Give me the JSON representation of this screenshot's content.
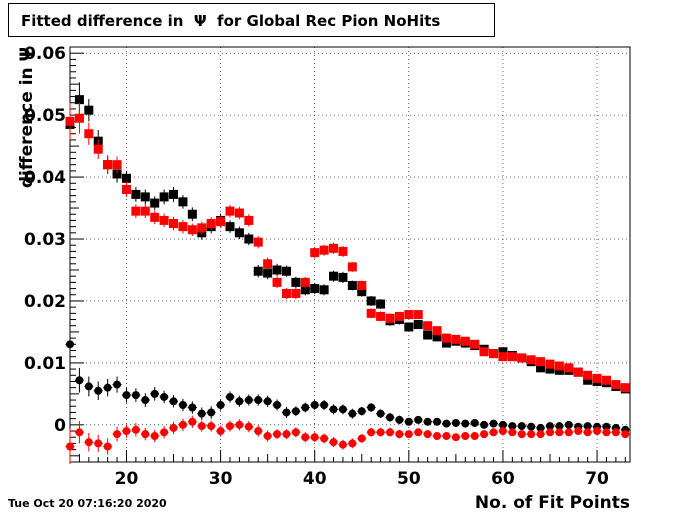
{
  "chart_data": {
    "type": "scatter",
    "title": "Fitted difference in  Ψ  for Global Rec Pion NoHits",
    "xlabel": "No. of Fit Points",
    "ylabel": "difference in Ψ",
    "xlim": [
      14,
      73.5
    ],
    "ylim": [
      -0.006,
      0.061
    ],
    "x_ticks": [
      20,
      30,
      40,
      50,
      60,
      70
    ],
    "x_tick_labels": [
      "20",
      "30",
      "40",
      "50",
      "60",
      "70"
    ],
    "y_ticks": [
      0,
      0.01,
      0.02,
      0.03,
      0.04,
      0.05,
      0.06
    ],
    "y_tick_labels": [
      "0",
      "0.01",
      "0.02",
      "0.03",
      "0.04",
      "0.05",
      "0.06"
    ],
    "grid": true,
    "series": [
      {
        "color": "#000000",
        "marker": "square",
        "x": [
          14,
          15,
          16,
          17,
          18,
          19,
          20,
          21,
          22,
          23,
          24,
          25,
          26,
          27,
          28,
          29,
          30,
          31,
          32,
          33,
          34,
          35,
          36,
          37,
          38,
          39,
          40,
          41,
          42,
          43,
          44,
          45,
          46,
          47,
          48,
          49,
          50,
          51,
          52,
          53,
          54,
          55,
          56,
          57,
          58,
          59,
          60,
          61,
          62,
          63,
          64,
          65,
          66,
          67,
          68,
          69,
          70,
          71,
          72,
          73
        ],
        "y": [
          0.0485,
          0.0525,
          0.0508,
          0.0458,
          0.042,
          0.0405,
          0.0398,
          0.0372,
          0.0368,
          0.0358,
          0.0368,
          0.0372,
          0.036,
          0.034,
          0.031,
          0.032,
          0.033,
          0.032,
          0.031,
          0.03,
          0.0248,
          0.0245,
          0.025,
          0.0248,
          0.023,
          0.0218,
          0.022,
          0.0218,
          0.024,
          0.0238,
          0.0225,
          0.0215,
          0.02,
          0.0195,
          0.0168,
          0.017,
          0.0158,
          0.0162,
          0.0145,
          0.0142,
          0.0132,
          0.0135,
          0.0132,
          0.0128,
          0.0122,
          0.0115,
          0.0118,
          0.0112,
          0.0108,
          0.0102,
          0.0092,
          0.009,
          0.0088,
          0.0088,
          0.0085,
          0.0072,
          0.007,
          0.0068,
          0.0062,
          0.0058
        ],
        "yerr": [
          0.0035,
          0.0028,
          0.0018,
          0.0018,
          0.0015,
          0.0014,
          0.0012,
          0.0012,
          0.0012,
          0.0011,
          0.0012,
          0.0012,
          0.0011,
          0.0011,
          0.0011,
          0.0011,
          0.0011,
          0.001,
          0.001,
          0.001,
          0.001,
          0.001,
          0.001,
          0.0009,
          0.0009,
          0.0009,
          0.0009,
          0.0009,
          0.0009,
          0.0009,
          0.0008,
          0.0008,
          0.0008,
          0.0008,
          0.0008,
          0.0008,
          0.0007,
          0.0007,
          0.0007,
          0.0007,
          0.0007,
          0.0007,
          0.0006,
          0.0006,
          0.0006,
          0.0006,
          0.0006,
          0.0006,
          0.0006,
          0.0006,
          0.0005,
          0.0005,
          0.0005,
          0.0005,
          0.0005,
          0.0005,
          0.0005,
          0.0005,
          0.0005,
          0.0005
        ]
      },
      {
        "color": "#ff0000",
        "marker": "square",
        "x": [
          14,
          15,
          16,
          17,
          18,
          19,
          20,
          21,
          22,
          23,
          24,
          25,
          26,
          27,
          28,
          29,
          30,
          31,
          32,
          33,
          34,
          35,
          36,
          37,
          38,
          39,
          40,
          41,
          42,
          43,
          44,
          45,
          46,
          47,
          48,
          49,
          50,
          51,
          52,
          53,
          54,
          55,
          56,
          57,
          58,
          59,
          60,
          61,
          62,
          63,
          64,
          65,
          66,
          67,
          68,
          69,
          70,
          71,
          72,
          73
        ],
        "y": [
          0.049,
          0.0495,
          0.047,
          0.0445,
          0.042,
          0.042,
          0.038,
          0.0345,
          0.0345,
          0.0335,
          0.033,
          0.0325,
          0.032,
          0.0315,
          0.0318,
          0.0325,
          0.0328,
          0.0345,
          0.0342,
          0.033,
          0.0295,
          0.026,
          0.023,
          0.0212,
          0.0212,
          0.023,
          0.0278,
          0.0282,
          0.0285,
          0.028,
          0.0255,
          0.0225,
          0.018,
          0.0175,
          0.0172,
          0.0175,
          0.0178,
          0.0178,
          0.016,
          0.0152,
          0.014,
          0.0138,
          0.0135,
          0.013,
          0.0118,
          0.0115,
          0.011,
          0.011,
          0.0108,
          0.0105,
          0.0102,
          0.0098,
          0.0095,
          0.0092,
          0.0085,
          0.008,
          0.0075,
          0.0072,
          0.0065,
          0.006
        ],
        "yerr": [
          0.003,
          0.0025,
          0.0018,
          0.0016,
          0.0015,
          0.0013,
          0.0012,
          0.0011,
          0.0011,
          0.0011,
          0.0011,
          0.0011,
          0.0011,
          0.001,
          0.001,
          0.001,
          0.001,
          0.001,
          0.001,
          0.001,
          0.001,
          0.001,
          0.0009,
          0.0009,
          0.0009,
          0.0009,
          0.0009,
          0.0009,
          0.0009,
          0.0009,
          0.0008,
          0.0008,
          0.0008,
          0.0008,
          0.0008,
          0.0007,
          0.0007,
          0.0007,
          0.0007,
          0.0007,
          0.0007,
          0.0006,
          0.0006,
          0.0006,
          0.0006,
          0.0006,
          0.0006,
          0.0006,
          0.0005,
          0.0005,
          0.0005,
          0.0005,
          0.0005,
          0.0005,
          0.0005,
          0.0005,
          0.0005,
          0.0005,
          0.0005,
          0.0005
        ]
      },
      {
        "color": "#000000",
        "marker": "circle",
        "x": [
          14,
          15,
          16,
          17,
          18,
          19,
          20,
          21,
          22,
          23,
          24,
          25,
          26,
          27,
          28,
          29,
          30,
          31,
          32,
          33,
          34,
          35,
          36,
          37,
          38,
          39,
          40,
          41,
          42,
          43,
          44,
          45,
          46,
          47,
          48,
          49,
          50,
          51,
          52,
          53,
          54,
          55,
          56,
          57,
          58,
          59,
          60,
          61,
          62,
          63,
          64,
          65,
          66,
          67,
          68,
          69,
          70,
          71,
          72,
          73
        ],
        "y": [
          0.013,
          0.0072,
          0.0062,
          0.0055,
          0.006,
          0.0065,
          0.0048,
          0.0048,
          0.004,
          0.005,
          0.0045,
          0.0038,
          0.0032,
          0.0028,
          0.0018,
          0.002,
          0.0032,
          0.0045,
          0.0038,
          0.004,
          0.004,
          0.0038,
          0.0032,
          0.002,
          0.0022,
          0.0028,
          0.0032,
          0.0032,
          0.0025,
          0.0025,
          0.0018,
          0.0022,
          0.0028,
          0.0018,
          0.0012,
          0.0008,
          0.0005,
          0.0008,
          0.0005,
          0.0005,
          0.0002,
          0.0003,
          0.0002,
          0.0003,
          0.0,
          0.0002,
          0.0,
          -0.0002,
          -0.0002,
          -0.0003,
          -0.0005,
          -0.0002,
          -0.0002,
          0.0,
          -0.0003,
          -0.0002,
          -0.0003,
          -0.0003,
          -0.0005,
          -0.0008
        ],
        "yerr": [
          0.0035,
          0.002,
          0.0016,
          0.0015,
          0.0014,
          0.0013,
          0.0012,
          0.0011,
          0.0011,
          0.0011,
          0.001,
          0.001,
          0.001,
          0.001,
          0.001,
          0.001,
          0.0009,
          0.0009,
          0.0009,
          0.0009,
          0.0009,
          0.0009,
          0.0009,
          0.0009,
          0.0008,
          0.0008,
          0.0008,
          0.0008,
          0.0008,
          0.0008,
          0.0008,
          0.0007,
          0.0007,
          0.0007,
          0.0007,
          0.0007,
          0.0006,
          0.0006,
          0.0006,
          0.0006,
          0.0006,
          0.0006,
          0.0006,
          0.0005,
          0.0005,
          0.0005,
          0.0005,
          0.0005,
          0.0005,
          0.0005,
          0.0005,
          0.0005,
          0.0005,
          0.0005,
          0.0005,
          0.0005,
          0.0005,
          0.0005,
          0.0005,
          0.0005
        ]
      },
      {
        "color": "#ff0000",
        "marker": "circle",
        "x": [
          14,
          15,
          16,
          17,
          18,
          19,
          20,
          21,
          22,
          23,
          24,
          25,
          26,
          27,
          28,
          29,
          30,
          31,
          32,
          33,
          34,
          35,
          36,
          37,
          38,
          39,
          40,
          41,
          42,
          43,
          44,
          45,
          46,
          47,
          48,
          49,
          50,
          51,
          52,
          53,
          54,
          55,
          56,
          57,
          58,
          59,
          60,
          61,
          62,
          63,
          64,
          65,
          66,
          67,
          68,
          69,
          70,
          71,
          72,
          73
        ],
        "y": [
          -0.0035,
          -0.0012,
          -0.0028,
          -0.003,
          -0.0035,
          -0.0015,
          -0.001,
          -0.0008,
          -0.0015,
          -0.0018,
          -0.0012,
          -0.0005,
          0.0,
          0.0005,
          -0.0002,
          -0.0002,
          -0.001,
          -0.0002,
          0.0,
          -0.0003,
          -0.001,
          -0.0018,
          -0.0015,
          -0.0015,
          -0.0012,
          -0.002,
          -0.002,
          -0.0022,
          -0.0028,
          -0.0032,
          -0.003,
          -0.0022,
          -0.0012,
          -0.0012,
          -0.0012,
          -0.0015,
          -0.0015,
          -0.0012,
          -0.0015,
          -0.0018,
          -0.0018,
          -0.002,
          -0.0018,
          -0.0018,
          -0.0015,
          -0.0012,
          -0.001,
          -0.0012,
          -0.0015,
          -0.0015,
          -0.0015,
          -0.0012,
          -0.0012,
          -0.0012,
          -0.001,
          -0.0012,
          -0.001,
          -0.0012,
          -0.0012,
          -0.0015
        ],
        "yerr": [
          0.0028,
          0.0018,
          0.0015,
          0.0014,
          0.0013,
          0.0012,
          0.0011,
          0.0011,
          0.001,
          0.001,
          0.001,
          0.001,
          0.001,
          0.001,
          0.0009,
          0.0009,
          0.0009,
          0.0009,
          0.0009,
          0.0009,
          0.0009,
          0.0009,
          0.0008,
          0.0008,
          0.0008,
          0.0008,
          0.0008,
          0.0008,
          0.0008,
          0.0008,
          0.0008,
          0.0007,
          0.0007,
          0.0007,
          0.0007,
          0.0007,
          0.0006,
          0.0006,
          0.0006,
          0.0006,
          0.0006,
          0.0006,
          0.0006,
          0.0005,
          0.0005,
          0.0005,
          0.0005,
          0.0005,
          0.0005,
          0.0005,
          0.0005,
          0.0005,
          0.0005,
          0.0005,
          0.0005,
          0.0005,
          0.0005,
          0.0005,
          0.0005,
          0.0005
        ]
      }
    ]
  },
  "footer": {
    "datestamp": "Tue Oct 20 07:16:20 2020"
  }
}
